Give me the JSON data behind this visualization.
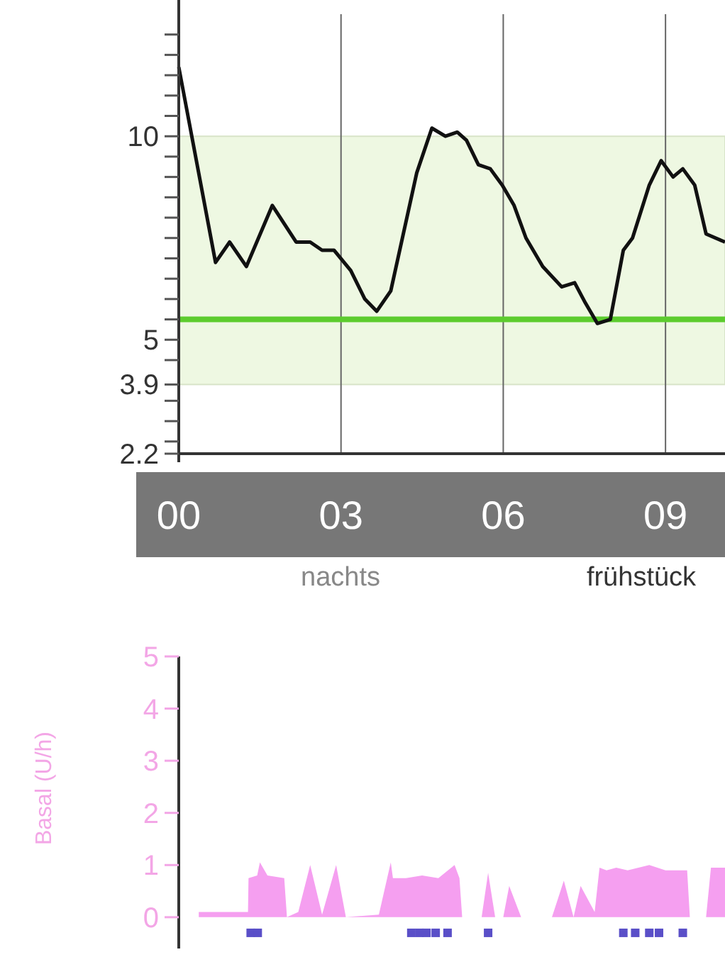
{
  "chart_data": [
    {
      "type": "line",
      "xlim": [
        0,
        10.1
      ],
      "ylim": [
        2.2,
        13
      ],
      "xticks": [
        {
          "value": 0,
          "label": "00"
        },
        {
          "value": 3,
          "label": "03"
        },
        {
          "value": 6,
          "label": "06"
        },
        {
          "value": 9,
          "label": "09"
        }
      ],
      "yticks": [
        2.2,
        {
          "value": 2.5,
          "label": null
        },
        {
          "value": 3,
          "label": null
        },
        {
          "value": 3.5,
          "label": null
        },
        3.9,
        {
          "value": 4.5,
          "label": null
        },
        5,
        {
          "value": 5.5,
          "label": null
        },
        {
          "value": 6,
          "label": null
        },
        {
          "value": 6.5,
          "label": null
        },
        {
          "value": 7,
          "label": null
        },
        {
          "value": 7.5,
          "label": null
        },
        {
          "value": 8,
          "label": null
        },
        {
          "value": 8.5,
          "label": null
        },
        {
          "value": 9,
          "label": null
        },
        {
          "value": 9.5,
          "label": null
        },
        10,
        {
          "value": 10.5,
          "label": null
        },
        {
          "value": 11,
          "label": null
        },
        {
          "value": 11.5,
          "label": null
        },
        {
          "value": 12,
          "label": null
        },
        {
          "value": 12.5,
          "label": null
        }
      ],
      "grid": "x",
      "bands": [
        {
          "axis": "y",
          "from": 3.9,
          "to": 10,
          "color": "#eef8e2"
        }
      ],
      "ref_lines": [
        {
          "axis": "y",
          "value": 5.5,
          "color": "#5ccc2e"
        }
      ],
      "series": [
        {
          "color": "#111111",
          "x": [
            0,
            0.68,
            0.94,
            1.25,
            1.73,
            2.17,
            2.43,
            2.65,
            2.87,
            3.18,
            3.44,
            3.66,
            3.92,
            4.4,
            4.68,
            4.93,
            5.15,
            5.32,
            5.54,
            5.76,
            5.98,
            6.2,
            6.42,
            6.73,
            7.08,
            7.32,
            7.52,
            7.74,
            7.98,
            8.22,
            8.39,
            8.7,
            8.92,
            9.14,
            9.32,
            9.54,
            9.75,
            10.1
          ],
          "values": [
            11.7,
            6.9,
            7.4,
            6.8,
            8.3,
            7.4,
            7.4,
            7.2,
            7.2,
            6.7,
            6,
            5.7,
            6.2,
            9.1,
            10.2,
            10,
            10.1,
            9.9,
            9.3,
            9.2,
            8.8,
            8.3,
            7.5,
            6.8,
            6.3,
            6.4,
            5.9,
            5.4,
            5.5,
            7.2,
            7.5,
            8.8,
            9.4,
            9,
            9.2,
            8.8,
            7.6,
            7.4
          ]
        }
      ]
    },
    {
      "type": "area",
      "ylabel": "Basal (U/h)",
      "annotations": [
        "nachts",
        "frühstück"
      ],
      "xlim": [
        0,
        10.1
      ],
      "ylim": [
        -0.6,
        5
      ],
      "yticks": [
        0,
        1,
        2,
        3,
        4,
        5
      ],
      "tick_labels": "y",
      "series": [
        {
          "color": "#f59ff0",
          "x": [
            0.37,
            1.28,
            1.29,
            1.45,
            1.5,
            1.64,
            1.95,
            2.0,
            2.21,
            2.43,
            2.65,
            2.91,
            3.09,
            3.7,
            3.92,
            3.96,
            4.2,
            4.5,
            4.8,
            5.1,
            5.19,
            5.24,
            5.6,
            5.72,
            5.85,
            6.0,
            6.11,
            6.33,
            6.9,
            7.12,
            7.3,
            7.43,
            7.69,
            7.78,
            7.91,
            8.09,
            8.3,
            8.7,
            9.0,
            9.4,
            9.45,
            9.75,
            9.84,
            10.1
          ],
          "values": [
            0.1,
            0.1,
            0.75,
            0.8,
            1.05,
            0.8,
            0.75,
            0,
            0.1,
            1,
            0.05,
            1,
            0,
            0.05,
            1.05,
            0.75,
            0.75,
            0.8,
            0.75,
            1,
            0.75,
            0,
            0,
            0.85,
            0,
            0,
            0.6,
            0,
            0,
            0.7,
            0,
            0.6,
            0.1,
            0.95,
            0.9,
            0.95,
            0.9,
            1,
            0.9,
            0.9,
            0,
            0,
            0.95,
            0.95
          ]
        },
        {
          "type": "scatter",
          "marker": "square",
          "color": "#5a4fc8",
          "x": [
            1.33,
            1.46,
            4.3,
            4.45,
            4.58,
            4.75,
            4.97,
            5.72,
            8.22,
            8.44,
            8.7,
            8.88,
            9.32
          ],
          "values": [
            -0.3,
            -0.3,
            -0.3,
            -0.3,
            -0.3,
            -0.3,
            -0.3,
            -0.3,
            -0.3,
            -0.3,
            -0.3,
            -0.3,
            -0.3
          ]
        }
      ]
    }
  ]
}
